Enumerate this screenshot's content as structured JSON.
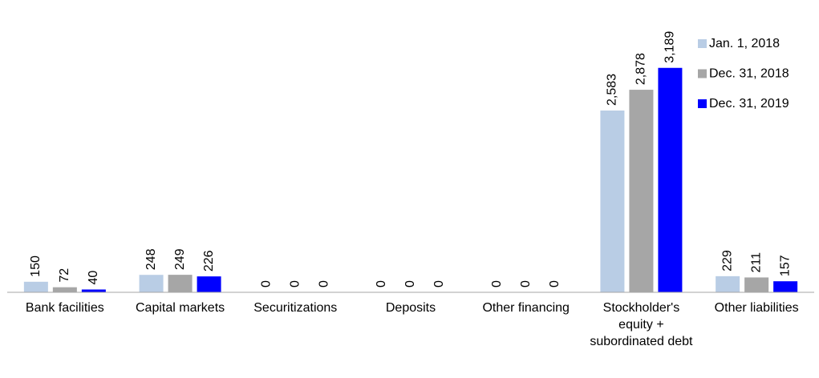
{
  "chart_data": {
    "type": "bar",
    "categories": [
      "Bank facilities",
      "Capital markets",
      "Securitizations",
      "Deposits",
      "Other financing",
      "Stockholder's equity + subordinated debt",
      "Other liabilities"
    ],
    "series": [
      {
        "name": "Jan. 1, 2018",
        "color": "#b9cde5",
        "values": [
          150,
          248,
          0,
          0,
          0,
          2583,
          229
        ],
        "value_labels": [
          "150",
          "248",
          "0",
          "0",
          "0",
          "2,583",
          "229"
        ]
      },
      {
        "name": "Dec. 31, 2018",
        "color": "#a6a6a6",
        "values": [
          72,
          249,
          0,
          0,
          0,
          2878,
          211
        ],
        "value_labels": [
          "72",
          "249",
          "0",
          "0",
          "0",
          "2,878",
          "211"
        ]
      },
      {
        "name": "Dec. 31, 2019",
        "color": "#0000ff",
        "values": [
          40,
          226,
          0,
          0,
          0,
          3189,
          157
        ],
        "value_labels": [
          "40",
          "226",
          "0",
          "0",
          "0",
          "3,189",
          "157"
        ]
      }
    ],
    "ylim": [
      0,
      3300
    ],
    "legend": "upper right"
  }
}
